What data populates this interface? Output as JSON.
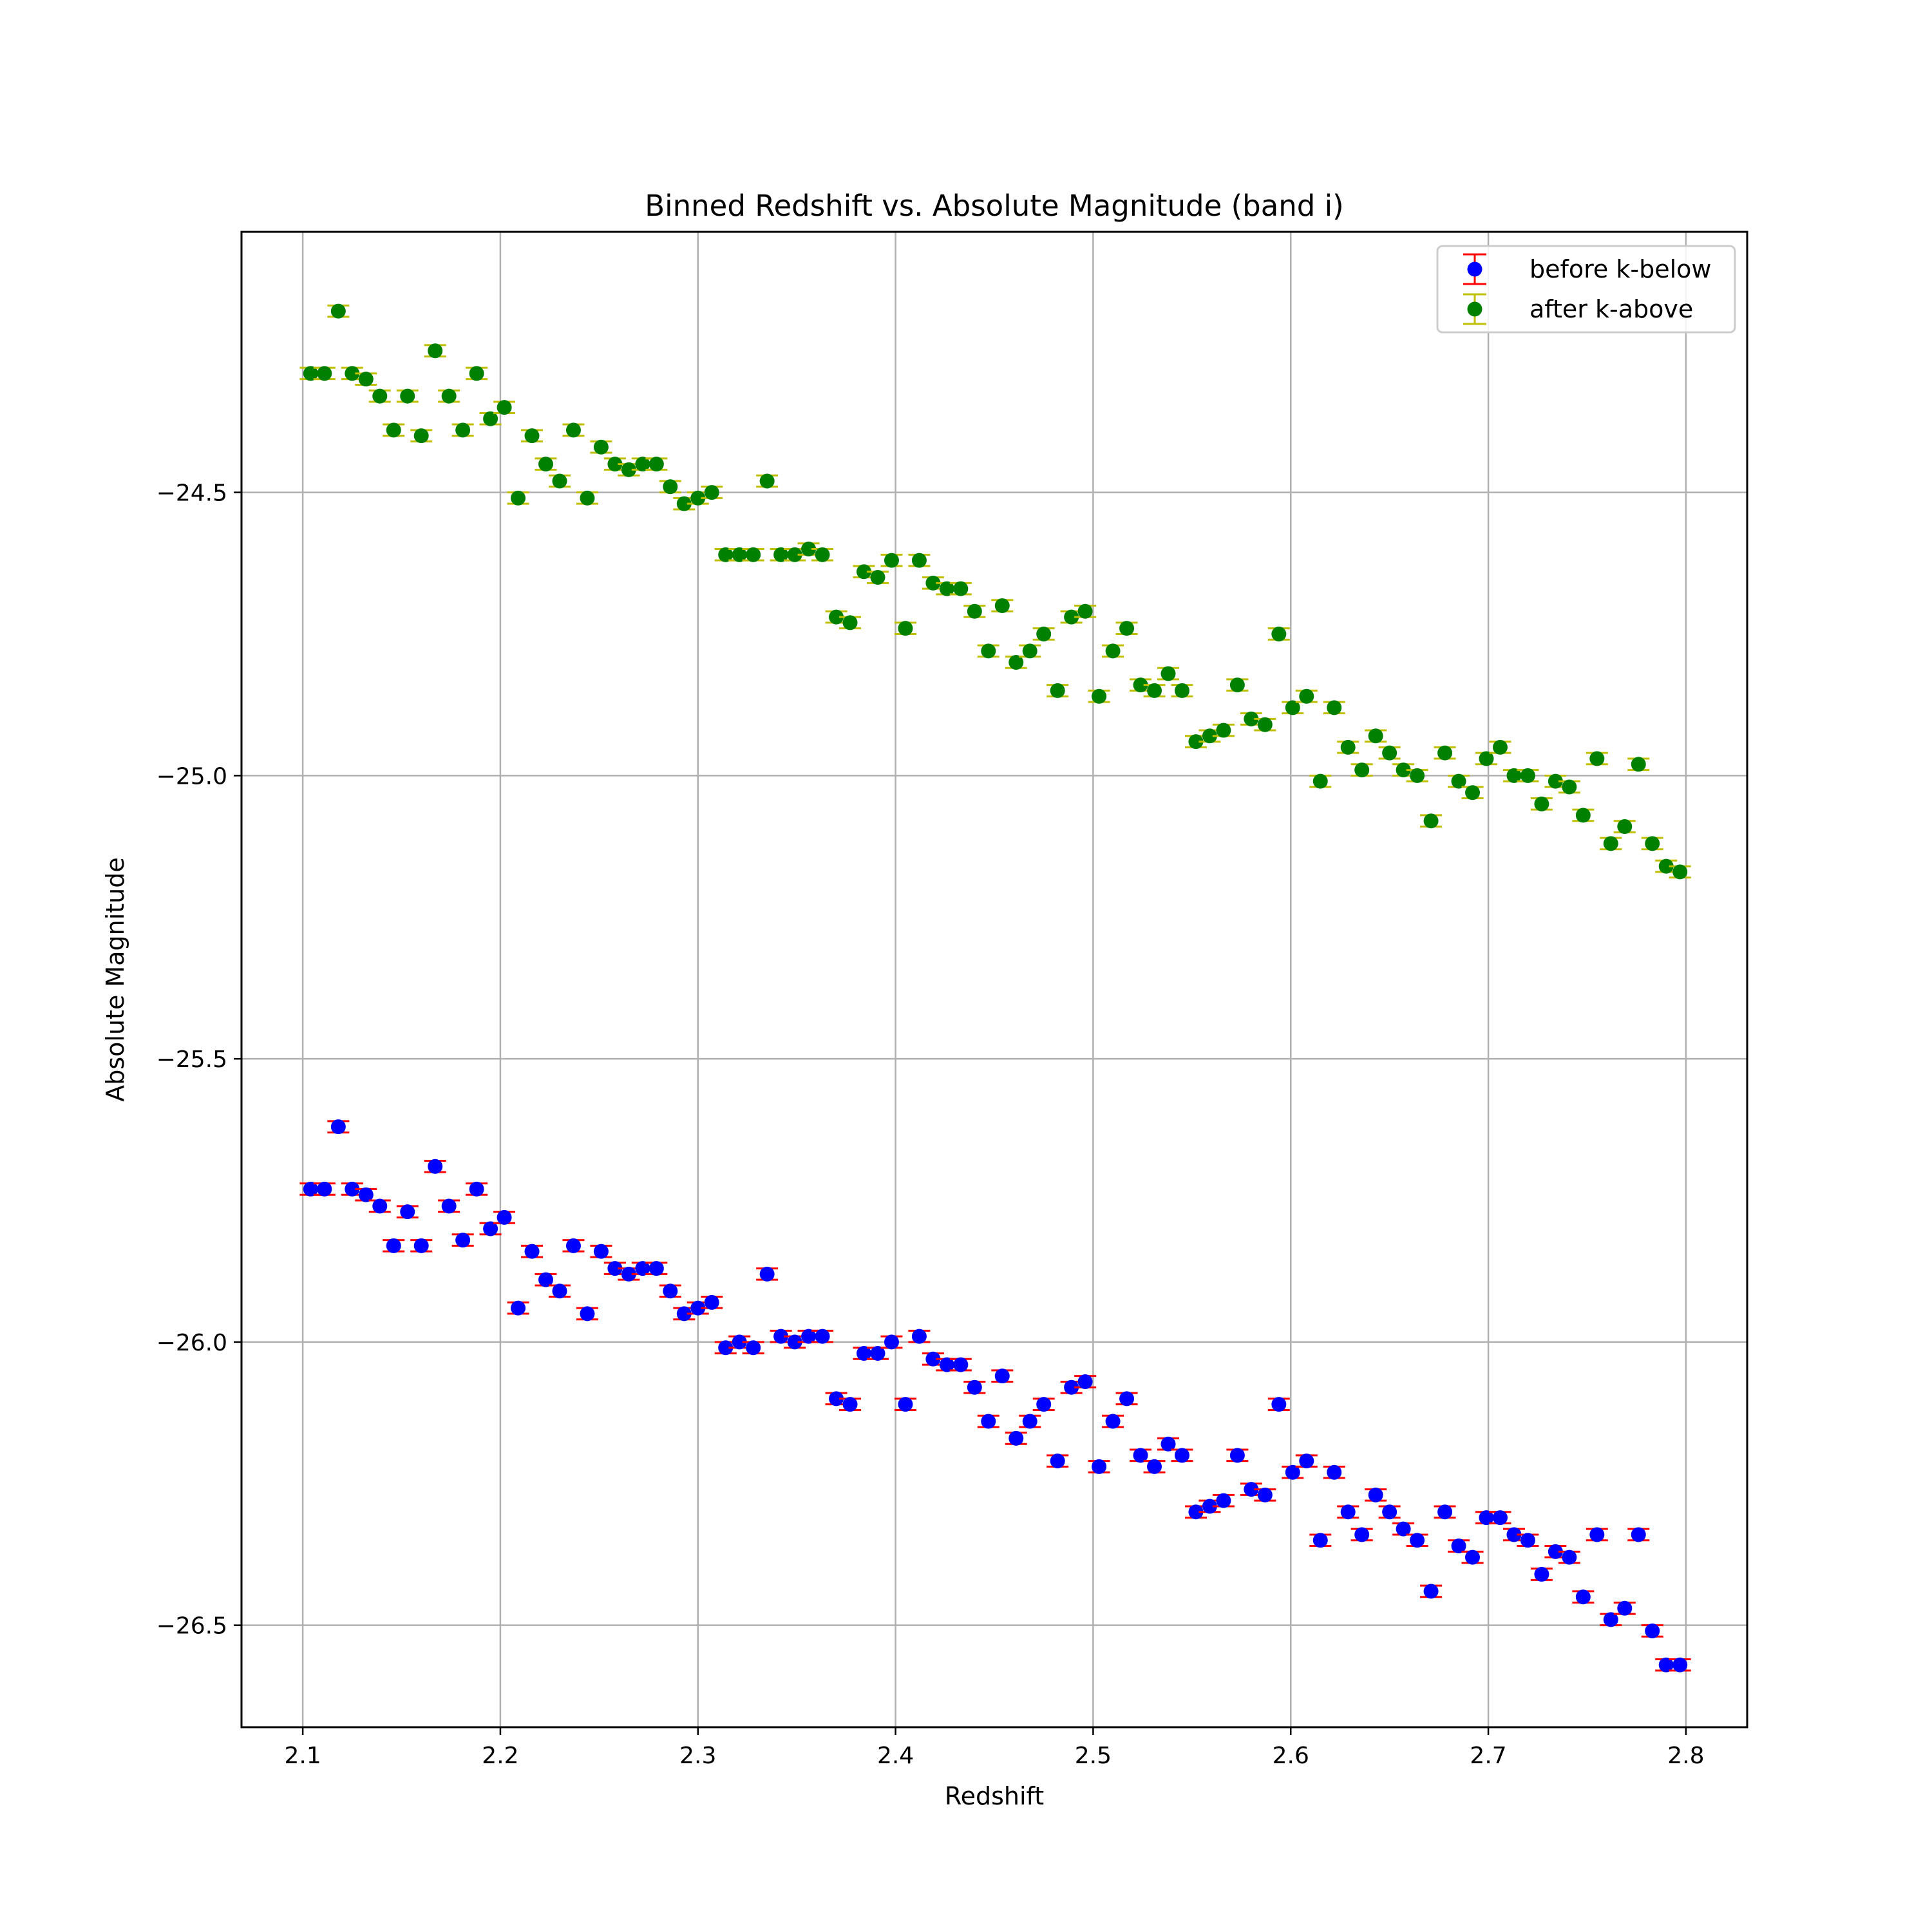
{
  "chart_data": {
    "type": "scatter",
    "title": "Binned Redshift vs. Absolute Magnitude (band i)",
    "xlabel": "Redshift",
    "ylabel": "Absolute Magnitude",
    "xlim": [
      2.069,
      2.831
    ],
    "ylim": [
      -26.68,
      -24.04
    ],
    "y_inverted_direction": "values increase upward",
    "grid": true,
    "legend_position": "top-right",
    "x_ticks": [
      "2.1",
      "2.2",
      "2.3",
      "2.4",
      "2.5",
      "2.6",
      "2.7",
      "2.8"
    ],
    "x_tick_values": [
      2.1,
      2.2,
      2.3,
      2.4,
      2.5,
      2.6,
      2.7,
      2.8
    ],
    "y_ticks": [
      "−24.5",
      "−25.0",
      "−25.5",
      "−26.0",
      "−26.5"
    ],
    "y_tick_values": [
      -24.5,
      -25.0,
      -25.5,
      -26.0,
      -26.5
    ],
    "x": [
      2.104,
      2.111,
      2.118,
      2.125,
      2.132,
      2.139,
      2.146,
      2.153,
      2.16,
      2.167,
      2.174,
      2.181,
      2.188,
      2.195,
      2.202,
      2.209,
      2.216,
      2.223,
      2.23,
      2.237,
      2.244,
      2.251,
      2.258,
      2.265,
      2.272,
      2.279,
      2.286,
      2.293,
      2.3,
      2.307,
      2.314,
      2.321,
      2.328,
      2.335,
      2.342,
      2.349,
      2.356,
      2.363,
      2.37,
      2.377,
      2.384,
      2.391,
      2.398,
      2.405,
      2.412,
      2.419,
      2.426,
      2.433,
      2.44,
      2.447,
      2.454,
      2.461,
      2.468,
      2.475,
      2.482,
      2.489,
      2.496,
      2.503,
      2.51,
      2.517,
      2.524,
      2.531,
      2.538,
      2.545,
      2.552,
      2.559,
      2.566,
      2.573,
      2.58,
      2.587,
      2.594,
      2.601,
      2.608,
      2.615,
      2.622,
      2.629,
      2.636,
      2.643,
      2.65,
      2.657,
      2.664,
      2.671,
      2.678,
      2.685,
      2.692,
      2.699,
      2.706,
      2.713,
      2.72,
      2.727,
      2.734,
      2.741,
      2.748,
      2.755,
      2.762,
      2.769,
      2.776,
      2.783,
      2.79,
      2.797
    ],
    "series": [
      {
        "name": "before k-below",
        "marker_color": "#0000ff",
        "errorbar_color": "#ff0000",
        "y": [
          -25.73,
          -25.73,
          -25.62,
          -25.73,
          -25.74,
          -25.76,
          -25.83,
          -25.77,
          -25.83,
          -25.69,
          -25.76,
          -25.82,
          -25.73,
          -25.8,
          -25.78,
          -25.94,
          -25.84,
          -25.89,
          -25.91,
          -25.83,
          -25.95,
          -25.84,
          -25.87,
          -25.88,
          -25.87,
          -25.87,
          -25.91,
          -25.95,
          -25.94,
          -25.93,
          -26.01,
          -26.0,
          -26.01,
          -25.88,
          -25.99,
          -26.0,
          -25.99,
          -25.99,
          -26.1,
          -26.11,
          -26.02,
          -26.02,
          -26.0,
          -26.11,
          -25.99,
          -26.03,
          -26.04,
          -26.04,
          -26.08,
          -26.14,
          -26.06,
          -26.17,
          -26.14,
          -26.11,
          -26.21,
          -26.08,
          -26.07,
          -26.22,
          -26.14,
          -26.1,
          -26.2,
          -26.22,
          -26.18,
          -26.2,
          -26.3,
          -26.29,
          -26.28,
          -26.2,
          -26.26,
          -26.27,
          -26.11,
          -26.23,
          -26.21,
          -26.35,
          -26.23,
          -26.3,
          -26.34,
          -26.27,
          -26.3,
          -26.33,
          -26.35,
          -26.44,
          -26.3,
          -26.36,
          -26.38,
          -26.31,
          -26.31,
          -26.34,
          -26.35,
          -26.41,
          -26.37,
          -26.38,
          -26.45,
          -26.34,
          -26.49,
          -26.47,
          -26.34,
          -26.51,
          -26.57,
          -26.57
        ],
        "yerr": 0.01
      },
      {
        "name": "after k-above",
        "marker_color": "#008000",
        "errorbar_color": "#bfbf00",
        "y": [
          -24.29,
          -24.29,
          -24.18,
          -24.29,
          -24.3,
          -24.33,
          -24.39,
          -24.33,
          -24.4,
          -24.25,
          -24.33,
          -24.39,
          -24.29,
          -24.37,
          -24.35,
          -24.51,
          -24.4,
          -24.45,
          -24.48,
          -24.39,
          -24.51,
          -24.42,
          -24.45,
          -24.46,
          -24.45,
          -24.45,
          -24.49,
          -24.52,
          -24.51,
          -24.5,
          -24.61,
          -24.61,
          -24.61,
          -24.48,
          -24.61,
          -24.61,
          -24.6,
          -24.61,
          -24.72,
          -24.73,
          -24.64,
          -24.65,
          -24.62,
          -24.74,
          -24.62,
          -24.66,
          -24.67,
          -24.67,
          -24.71,
          -24.78,
          -24.7,
          -24.8,
          -24.78,
          -24.75,
          -24.85,
          -24.72,
          -24.71,
          -24.86,
          -24.78,
          -24.74,
          -24.84,
          -24.85,
          -24.82,
          -24.85,
          -24.94,
          -24.93,
          -24.92,
          -24.84,
          -24.9,
          -24.91,
          -24.75,
          -24.88,
          -24.86,
          -25.01,
          -24.88,
          -24.95,
          -24.99,
          -24.93,
          -24.96,
          -24.99,
          -25.0,
          -25.08,
          -24.96,
          -25.01,
          -25.03,
          -24.97,
          -24.95,
          -25.0,
          -25.0,
          -25.05,
          -25.01,
          -25.02,
          -25.07,
          -24.97,
          -25.12,
          -25.09,
          -24.98,
          -25.12,
          -25.16,
          -25.17
        ],
        "yerr": 0.01
      }
    ]
  }
}
